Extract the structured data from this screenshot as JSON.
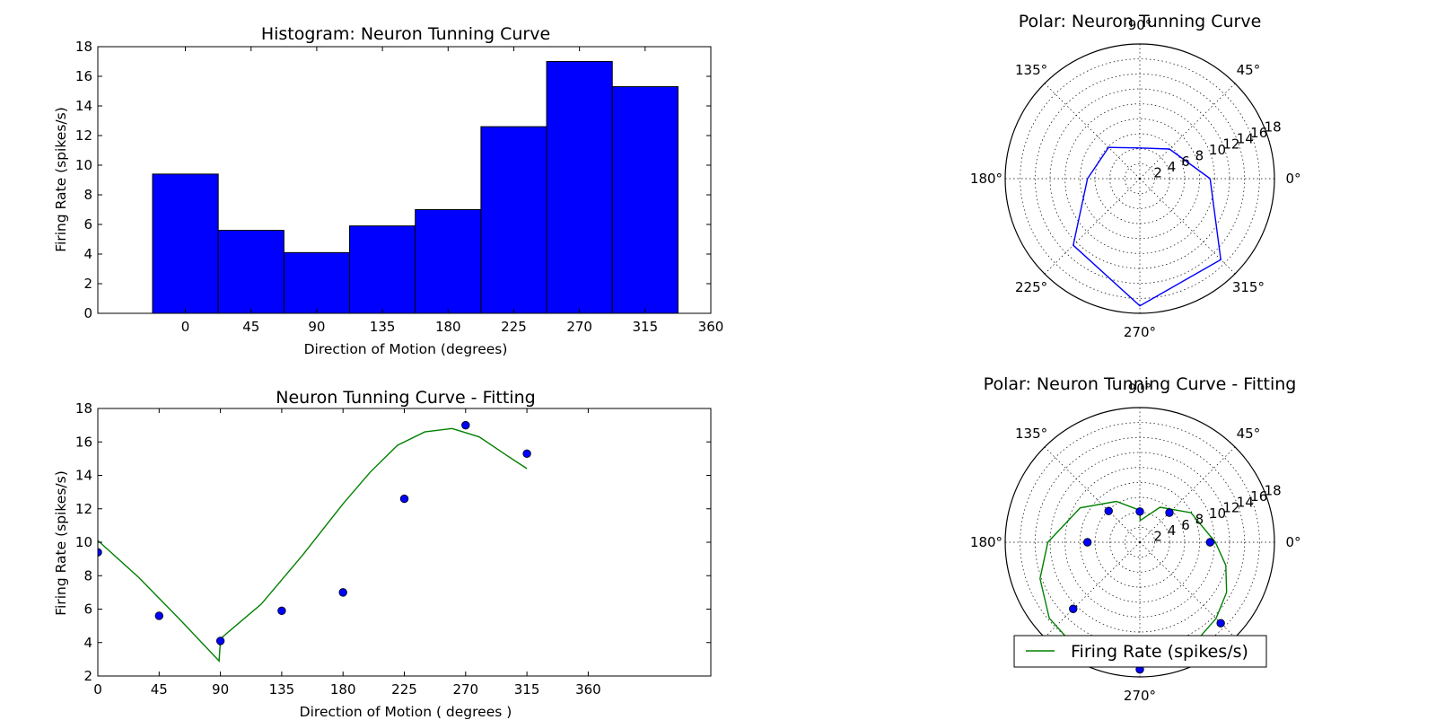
{
  "chart_data": [
    {
      "id": "hist",
      "type": "bar",
      "title": "Histogram: Neuron Tunning Curve",
      "xlabel": "Direction of Motion (degrees)",
      "ylabel": "Firing Rate (spikes/s)",
      "xlim": [
        -60,
        360
      ],
      "ylim": [
        0,
        18
      ],
      "xticks": [
        0,
        45,
        90,
        135,
        180,
        225,
        270,
        315,
        360
      ],
      "yticks": [
        0,
        2,
        4,
        6,
        8,
        10,
        12,
        14,
        16,
        18
      ],
      "categories": [
        0,
        45,
        90,
        135,
        180,
        225,
        270,
        315
      ],
      "values": [
        9.4,
        5.6,
        4.1,
        5.9,
        7.0,
        12.6,
        17.0,
        15.3
      ],
      "bar_color": "#0000ff"
    },
    {
      "id": "fit",
      "type": "line",
      "title": "Neuron Tunning Curve - Fitting",
      "xlabel": "Direction of Motion ( degrees )",
      "ylabel": "Firing Rate (spikes/s)",
      "xlim": [
        0,
        450
      ],
      "ylim": [
        2,
        18
      ],
      "xticks": [
        0,
        45,
        90,
        135,
        180,
        225,
        270,
        315,
        360
      ],
      "yticks": [
        2,
        4,
        6,
        8,
        10,
        12,
        14,
        16,
        18
      ],
      "series": [
        {
          "kind": "points",
          "color": "#0000ff",
          "x": [
            0,
            45,
            90,
            135,
            180,
            225,
            270,
            315
          ],
          "y": [
            9.4,
            5.6,
            4.1,
            5.9,
            7.0,
            12.6,
            17.0,
            15.3
          ]
        },
        {
          "kind": "line",
          "color": "#008000",
          "x": [
            0,
            30,
            60,
            89,
            90,
            91,
            120,
            150,
            180,
            200,
            220,
            240,
            260,
            280,
            300,
            315
          ],
          "y": [
            10.1,
            7.9,
            5.4,
            2.9,
            4.1,
            4.3,
            6.3,
            9.2,
            12.3,
            14.2,
            15.8,
            16.6,
            16.8,
            16.3,
            15.2,
            14.4
          ]
        }
      ]
    },
    {
      "id": "polar1",
      "type": "polar",
      "title": "Polar: Neuron Tunning Curve",
      "rmax": 18,
      "rings": [
        2,
        4,
        6,
        8,
        10,
        12,
        14,
        16,
        18
      ],
      "angle_labels": [
        "0°",
        "45°",
        "90°",
        "135°",
        "180°",
        "225°",
        "270°",
        "315°"
      ],
      "series": [
        {
          "kind": "line",
          "color": "#0000ff",
          "theta": [
            0,
            45,
            90,
            135,
            180,
            225,
            270,
            315,
            360
          ],
          "r": [
            9.4,
            5.6,
            4.1,
            5.9,
            7.0,
            12.6,
            17.0,
            15.3,
            9.4
          ]
        }
      ]
    },
    {
      "id": "polar2",
      "type": "polar",
      "title": "Polar: Neuron Tunning Curve - Fitting",
      "rmax": 18,
      "rings": [
        2,
        4,
        6,
        8,
        10,
        12,
        14,
        16,
        18
      ],
      "angle_labels": [
        "0°",
        "45°",
        "90°",
        "135°",
        "180°",
        "225°",
        "270°",
        "315°"
      ],
      "legend": {
        "label": "Firing Rate (spikes/s)",
        "position": "bottom-center"
      },
      "series": [
        {
          "kind": "points",
          "color": "#0000ff",
          "theta": [
            0,
            45,
            90,
            135,
            180,
            225,
            270,
            315
          ],
          "r": [
            9.4,
            5.6,
            4.1,
            5.9,
            7.0,
            12.6,
            17.0,
            15.3
          ]
        },
        {
          "kind": "line",
          "color": "#008000",
          "theta": [
            0,
            30,
            60,
            89,
            90,
            91,
            120,
            150,
            180,
            200,
            220,
            240,
            260,
            280,
            300,
            315,
            330,
            345,
            360
          ],
          "r": [
            10.1,
            7.9,
            5.4,
            2.9,
            4.1,
            4.3,
            6.3,
            9.2,
            12.3,
            14.2,
            15.8,
            16.6,
            16.8,
            16.3,
            15.2,
            14.4,
            13.4,
            11.9,
            10.1
          ]
        }
      ]
    }
  ]
}
